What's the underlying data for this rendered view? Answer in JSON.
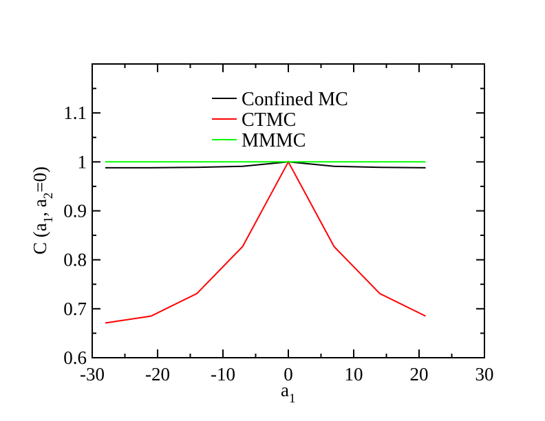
{
  "chart_data": {
    "type": "line",
    "title": "",
    "xlabel": "a",
    "xlabel_sub": "1",
    "ylabel": {
      "prefix": "C (a",
      "sub1": "1",
      "middle": ", a",
      "sub2": "2",
      "suffix": "=0)"
    },
    "xlim": [
      -30,
      30
    ],
    "ylim": [
      0.6,
      1.2
    ],
    "xticks": [
      -30,
      -20,
      -10,
      0,
      10,
      20,
      30
    ],
    "xtick_labels": [
      "-30",
      "-20",
      "-10",
      "0",
      "10",
      "20",
      "30"
    ],
    "yticks": [
      0.6,
      0.7,
      0.8,
      0.9,
      1.0,
      1.1
    ],
    "ytick_labels": [
      "0.6",
      "0.7",
      "0.8",
      "0.9",
      "1",
      "1.1"
    ],
    "grid": false,
    "legend_position": "top-center",
    "series": [
      {
        "name": "Confined MC",
        "color": "#000000",
        "x": [
          -28,
          -21,
          -14,
          -7,
          0,
          7,
          14,
          21
        ],
        "y": [
          0.988,
          0.988,
          0.989,
          0.991,
          1.0,
          0.991,
          0.989,
          0.988
        ]
      },
      {
        "name": "CTMC",
        "color": "#ff0000",
        "x": [
          -28,
          -21,
          -14,
          -7,
          0,
          7,
          14,
          21
        ],
        "y": [
          0.671,
          0.685,
          0.731,
          0.827,
          1.0,
          0.827,
          0.731,
          0.685
        ]
      },
      {
        "name": "MMMC",
        "color": "#00ff00",
        "x": [
          -28,
          -21,
          -14,
          -7,
          0,
          7,
          14,
          21
        ],
        "y": [
          1.0,
          1.0,
          1.0,
          1.0,
          1.0,
          1.0,
          1.0,
          1.0
        ]
      }
    ]
  }
}
